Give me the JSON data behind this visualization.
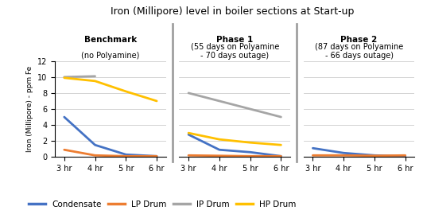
{
  "title": "Iron (Millipore) level in boiler sections at Start-up",
  "ylabel": "Iron (Millipore) - ppm Fe",
  "x_labels": [
    "3 hr",
    "4 hr",
    "5 hr",
    "6 hr"
  ],
  "phases": [
    {
      "label_line1": "Benchmark",
      "label_line2": "(no Polyamine)",
      "condensate": [
        5.0,
        1.5,
        0.3,
        0.1
      ],
      "lp_drum": [
        0.9,
        0.2,
        0.1,
        0.1
      ],
      "ip_drum": [
        10.0,
        10.1,
        null,
        null
      ],
      "hp_drum": [
        9.9,
        9.5,
        8.2,
        7.0
      ]
    },
    {
      "label_line1": "Phase 1",
      "label_line2": "(55 days on Polyamine\n- 70 days outage)",
      "condensate": [
        2.8,
        0.9,
        0.6,
        0.1
      ],
      "lp_drum": [
        0.2,
        0.15,
        0.1,
        0.1
      ],
      "ip_drum": [
        8.0,
        null,
        null,
        5.0
      ],
      "hp_drum": [
        3.0,
        2.2,
        1.8,
        1.5
      ]
    },
    {
      "label_line1": "Phase 2",
      "label_line2": "(87 days on Polyamine\n- 66 days outage)",
      "condensate": [
        1.1,
        0.5,
        0.2,
        0.1
      ],
      "lp_drum": [
        0.2,
        0.2,
        0.15,
        0.2
      ],
      "ip_drum": [
        null,
        null,
        null,
        null
      ],
      "hp_drum": [
        null,
        null,
        null,
        null
      ]
    }
  ],
  "colors": {
    "condensate": "#4472C4",
    "lp_drum": "#ED7D31",
    "ip_drum": "#A5A5A5",
    "hp_drum": "#FFC000"
  },
  "ylim": [
    0,
    12
  ],
  "yticks": [
    0,
    2,
    4,
    6,
    8,
    10,
    12
  ],
  "separator_color": "#A0A0A0",
  "background_color": "#FFFFFF",
  "legend_labels": [
    "Condensate",
    "LP Drum",
    "IP Drum",
    "HP Drum"
  ],
  "legend_keys": [
    "condensate",
    "lp_drum",
    "ip_drum",
    "hp_drum"
  ]
}
